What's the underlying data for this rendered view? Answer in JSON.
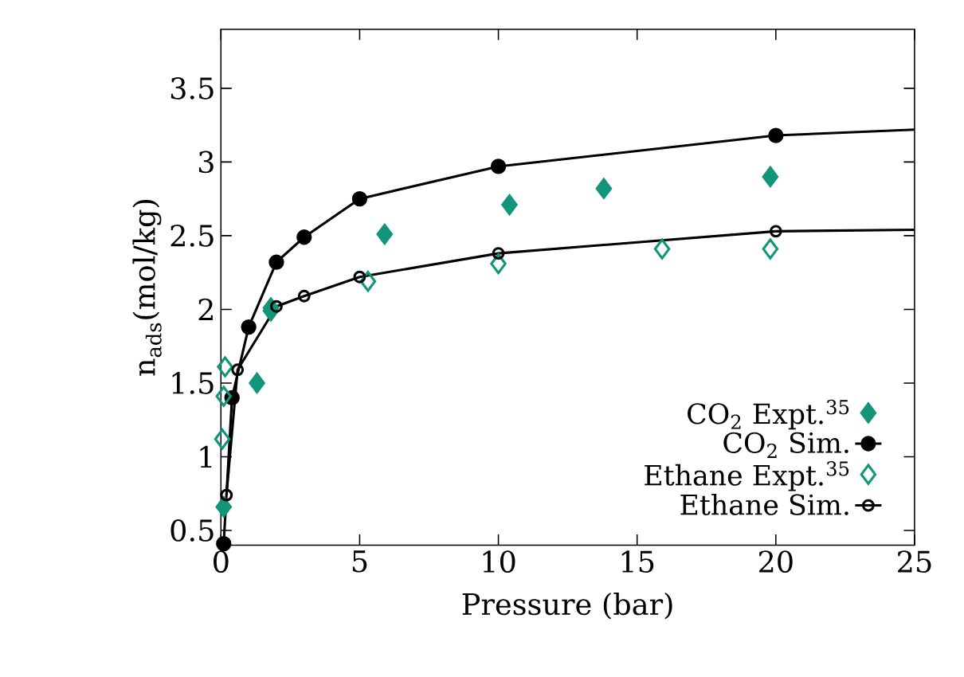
{
  "chart_data": {
    "type": "scatter",
    "xlabel": "Pressure (bar)",
    "ylabel": "n$_{ads}$(mol/kg)",
    "xlim": [
      0,
      25
    ],
    "ylim": [
      0.4,
      3.9
    ],
    "xticks": [
      0,
      5,
      10,
      15,
      20,
      25
    ],
    "yticks": [
      0.5,
      1,
      1.5,
      2,
      2.5,
      3,
      3.5
    ],
    "legend": "bottom right",
    "grid": false,
    "series": [
      {
        "name": "CO$_{2}$ Expt.$^{35}$",
        "type": "scatter",
        "marker": "diamond",
        "color": "#12957a",
        "x": [
          0.1,
          1.3,
          1.8,
          5.9,
          10.4,
          13.8,
          19.8
        ],
        "values": [
          0.66,
          1.5,
          1.99,
          2.51,
          2.71,
          2.82,
          2.9
        ]
      },
      {
        "name": "CO$_{2}$ Sim.",
        "type": "line",
        "marker": "circle",
        "color": "#000000",
        "x": [
          0.1,
          0.4,
          1,
          2,
          3,
          5,
          10,
          20
        ],
        "values": [
          0.41,
          1.4,
          1.88,
          2.32,
          2.49,
          2.75,
          2.97,
          3.18
        ]
      },
      {
        "name": "Ethane Expt.$^{35}$",
        "type": "scatter",
        "marker": "diamond-open",
        "color": "#12957a",
        "x": [
          0.05,
          0.1,
          0.15,
          1.8,
          5.3,
          10,
          15.9,
          19.8
        ],
        "values": [
          1.12,
          1.41,
          1.61,
          2.01,
          2.19,
          2.31,
          2.41,
          2.41
        ]
      },
      {
        "name": "Ethane Sim.",
        "type": "line",
        "marker": "circle-open",
        "color": "#000000",
        "x": [
          0.2,
          0.6,
          2,
          3,
          5,
          10,
          20
        ],
        "values": [
          0.74,
          1.59,
          2.02,
          2.09,
          2.22,
          2.38,
          2.53
        ]
      },
      {
        "type": "line",
        "marker": "none",
        "color": "#000000",
        "x": [
          20,
          25
        ],
        "values": [
          3.18,
          3.22
        ]
      },
      {
        "type": "line",
        "marker": "none",
        "color": "#000000",
        "x": [
          20,
          25
        ],
        "values": [
          2.53,
          2.54
        ]
      }
    ]
  }
}
